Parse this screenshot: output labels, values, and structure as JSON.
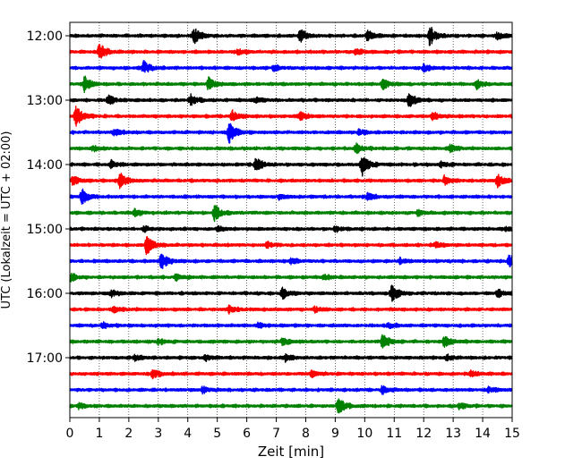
{
  "chart_data": {
    "type": "line",
    "title": "",
    "xlabel": "Zeit  [min]",
    "ylabel": "UTC (Lokalzeit = UTC + 02:00)",
    "xlim": [
      0,
      15
    ],
    "x_ticks": [
      "0",
      "1",
      "2",
      "3",
      "4",
      "5",
      "6",
      "7",
      "8",
      "9",
      "10",
      "11",
      "12",
      "13",
      "14",
      "15"
    ],
    "y_tick_labels": [
      "12:00",
      "13:00",
      "14:00",
      "15:00",
      "16:00",
      "17:00"
    ],
    "grid": "vertical dotted",
    "trace_colors": [
      "#000000",
      "#ff0000",
      "#0000ff",
      "#008000"
    ],
    "traces": [
      {
        "start": "12:00",
        "events": [
          [
            4.2,
            1.0
          ],
          [
            7.8,
            0.8
          ],
          [
            10.1,
            0.6
          ],
          [
            12.2,
            1.1
          ],
          [
            14.5,
            0.4
          ]
        ]
      },
      {
        "start": "12:15",
        "events": [
          [
            1.0,
            1.0
          ],
          [
            5.7,
            0.3
          ],
          [
            9.7,
            0.3
          ]
        ]
      },
      {
        "start": "12:30",
        "events": [
          [
            2.5,
            0.8
          ],
          [
            6.9,
            0.3
          ],
          [
            12.0,
            0.4
          ]
        ]
      },
      {
        "start": "12:45",
        "events": [
          [
            0.5,
            0.9
          ],
          [
            4.7,
            0.7
          ],
          [
            10.6,
            0.6
          ],
          [
            13.8,
            0.5
          ]
        ]
      },
      {
        "start": "13:00",
        "events": [
          [
            1.3,
            0.5
          ],
          [
            4.1,
            0.6
          ],
          [
            6.3,
            0.3
          ],
          [
            11.5,
            0.8
          ]
        ]
      },
      {
        "start": "13:15",
        "events": [
          [
            0.2,
            1.2
          ],
          [
            5.5,
            0.6
          ],
          [
            7.8,
            0.5
          ],
          [
            12.3,
            0.4
          ]
        ]
      },
      {
        "start": "13:30",
        "events": [
          [
            1.5,
            0.4
          ],
          [
            5.4,
            1.2
          ],
          [
            9.8,
            0.3
          ]
        ]
      },
      {
        "start": "13:45",
        "events": [
          [
            0.8,
            0.3
          ],
          [
            9.7,
            0.5
          ],
          [
            12.9,
            0.4
          ]
        ]
      },
      {
        "start": "14:00",
        "events": [
          [
            1.4,
            0.4
          ],
          [
            6.3,
            0.8
          ],
          [
            9.9,
            1.3
          ],
          [
            12.6,
            0.3
          ]
        ]
      },
      {
        "start": "14:15",
        "events": [
          [
            0.1,
            0.5
          ],
          [
            1.7,
            0.9
          ],
          [
            12.7,
            0.5
          ],
          [
            14.5,
            0.7
          ]
        ]
      },
      {
        "start": "14:30",
        "events": [
          [
            0.4,
            0.9
          ],
          [
            7.1,
            0.3
          ],
          [
            10.1,
            0.4
          ]
        ]
      },
      {
        "start": "14:45",
        "events": [
          [
            2.2,
            0.4
          ],
          [
            4.9,
            0.9
          ],
          [
            11.8,
            0.3
          ]
        ]
      },
      {
        "start": "15:00",
        "events": [
          [
            2.5,
            0.3
          ],
          [
            5.0,
            0.3
          ],
          [
            9.0,
            0.3
          ],
          [
            14.8,
            0.2
          ]
        ]
      },
      {
        "start": "15:15",
        "events": [
          [
            2.6,
            1.1
          ],
          [
            6.7,
            0.3
          ],
          [
            12.4,
            0.3
          ]
        ]
      },
      {
        "start": "15:30",
        "events": [
          [
            3.1,
            1.0
          ],
          [
            7.5,
            0.3
          ],
          [
            11.2,
            0.3
          ],
          [
            14.9,
            0.7
          ]
        ]
      },
      {
        "start": "15:45",
        "events": [
          [
            0.0,
            0.5
          ],
          [
            3.6,
            0.3
          ],
          [
            8.6,
            0.3
          ]
        ]
      },
      {
        "start": "16:00",
        "events": [
          [
            1.4,
            0.4
          ],
          [
            7.2,
            0.6
          ],
          [
            10.9,
            1.0
          ],
          [
            14.5,
            0.4
          ]
        ]
      },
      {
        "start": "16:15",
        "events": [
          [
            1.5,
            0.3
          ],
          [
            5.4,
            0.4
          ],
          [
            8.3,
            0.3
          ]
        ]
      },
      {
        "start": "16:30",
        "events": [
          [
            1.1,
            0.3
          ],
          [
            6.4,
            0.3
          ],
          [
            10.8,
            0.3
          ]
        ]
      },
      {
        "start": "16:45",
        "events": [
          [
            3.0,
            0.3
          ],
          [
            7.2,
            0.4
          ],
          [
            10.6,
            0.8
          ],
          [
            12.7,
            0.7
          ]
        ]
      },
      {
        "start": "17:00",
        "events": [
          [
            2.2,
            0.3
          ],
          [
            4.6,
            0.3
          ],
          [
            7.3,
            0.4
          ],
          [
            12.8,
            0.3
          ]
        ]
      },
      {
        "start": "17:15",
        "events": [
          [
            2.8,
            0.5
          ],
          [
            8.2,
            0.3
          ],
          [
            13.6,
            0.3
          ]
        ]
      },
      {
        "start": "17:30",
        "events": [
          [
            4.5,
            0.3
          ],
          [
            10.6,
            0.4
          ],
          [
            14.2,
            0.3
          ]
        ]
      },
      {
        "start": "17:45",
        "events": [
          [
            0.3,
            0.3
          ],
          [
            9.1,
            1.0
          ],
          [
            13.2,
            0.3
          ]
        ]
      }
    ]
  }
}
